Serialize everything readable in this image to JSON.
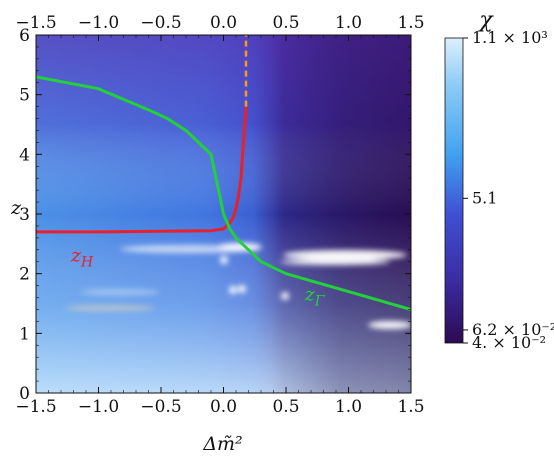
{
  "chart_data": {
    "type": "heatmap",
    "xlabel": "Δm̃²",
    "ylabel": "z",
    "xlim": [
      -1.5,
      1.5
    ],
    "ylim": [
      0,
      6
    ],
    "x_ticks": [
      "−1.5",
      "−1.0",
      "−0.5",
      "0.0",
      "0.5",
      "1.0",
      "1.5"
    ],
    "x_tick_values": [
      -1.5,
      -1.0,
      -0.5,
      0.0,
      0.5,
      1.0,
      1.5
    ],
    "y_ticks": [
      "0",
      "1",
      "2",
      "3",
      "4",
      "5",
      "6"
    ],
    "y_tick_values": [
      0,
      1,
      2,
      3,
      4,
      5,
      6
    ],
    "colorbar": {
      "title": "χ",
      "scale": "log",
      "range": [
        0.04,
        1100
      ],
      "tick_labels": [
        "1.1 × 10³",
        "5.1",
        "6.2 × 10⁻²",
        "4. × 10⁻²"
      ],
      "colors": [
        "#ddf0fb",
        "#41a2f0",
        "#3f50d2",
        "#2c0b52"
      ]
    },
    "series": [
      {
        "name": "z_H",
        "color": "#e8202a",
        "x": [
          -1.5,
          -1.0,
          -0.5,
          -0.1,
          0.0,
          0.05,
          0.08,
          0.1,
          0.12,
          0.14,
          0.15,
          0.16,
          0.17,
          0.18
        ],
        "y": [
          2.7,
          2.7,
          2.71,
          2.72,
          2.75,
          2.85,
          2.95,
          3.1,
          3.3,
          3.6,
          3.9,
          4.2,
          4.5,
          4.8
        ]
      },
      {
        "name": "",
        "color": "#f59a23",
        "dashed": true,
        "x": [
          0.18,
          0.18
        ],
        "y": [
          4.8,
          6.0
        ]
      },
      {
        "name": "z_Γ",
        "color": "#22d13a",
        "x": [
          -1.5,
          -1.0,
          -0.55,
          -0.45,
          -0.3,
          -0.1,
          -0.05,
          0.0,
          0.05,
          0.1,
          0.2,
          0.3,
          0.5,
          1.0,
          1.5
        ],
        "y": [
          5.3,
          5.1,
          4.7,
          4.6,
          4.4,
          4.0,
          3.5,
          3.0,
          2.75,
          2.6,
          2.4,
          2.2,
          2.0,
          1.7,
          1.4
        ]
      }
    ],
    "annotations": [
      {
        "text": "z",
        "sub": "H",
        "color": "#e8202a",
        "x": -1.22,
        "y": 2.2
      },
      {
        "text": "z",
        "sub": "Γ",
        "color": "#22d13a",
        "x": 0.65,
        "y": 1.55
      }
    ]
  }
}
